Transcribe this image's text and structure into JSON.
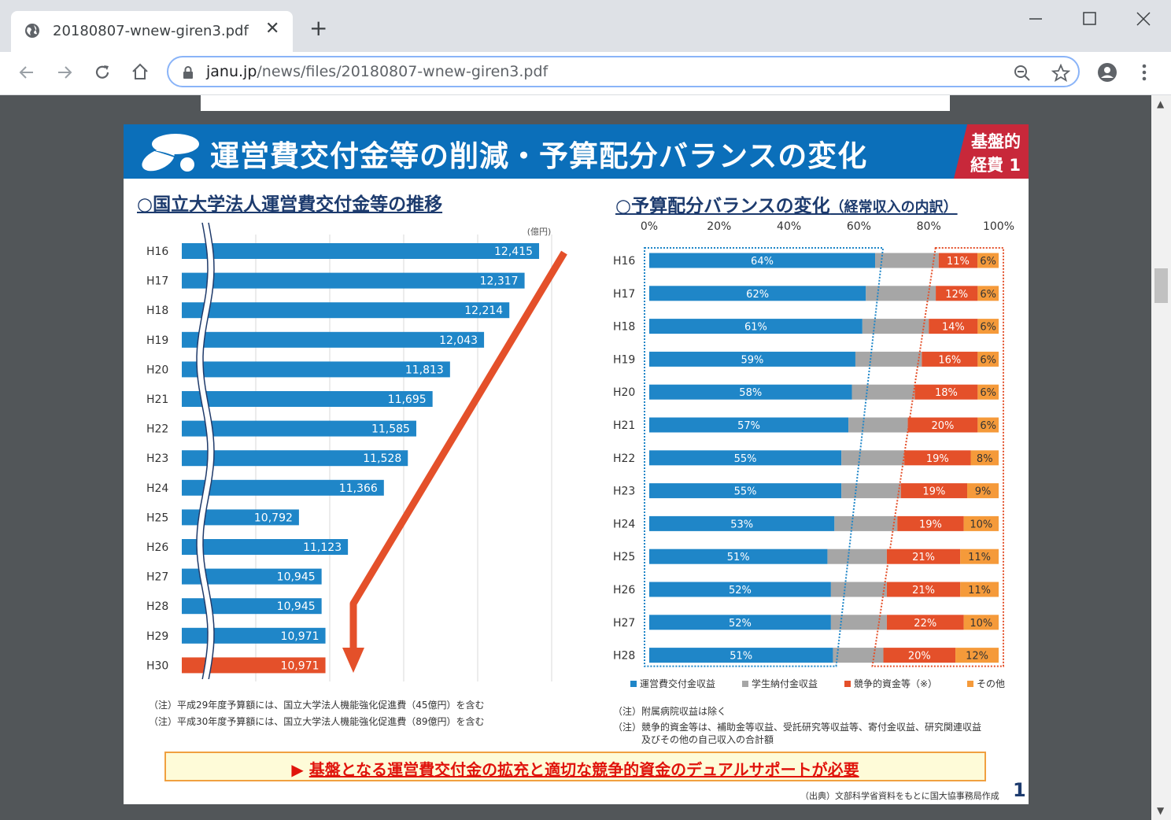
{
  "browser": {
    "tab_title": "20180807-wnew-giren3.pdf",
    "tab_close": "✕",
    "new_tab": "+",
    "url_host": "janu.jp",
    "url_path": "/news/files/20180807-wnew-giren3.pdf"
  },
  "page": {
    "title": "運営費交付金等の削減・予算配分バランスの変化",
    "badge_line1": "基盤的",
    "badge_line2": "経費 1",
    "left_section_title": "○国立大学法人運営費交付金等の推移",
    "right_section_title": "○予算配分バランスの変化",
    "right_section_subtitle": "（経常収入の内訳）",
    "left_notes": [
      "（注）平成29年度予算額には、国立大学法人機能強化促進費（45億円）を含む",
      "（注）平成30年度予算額には、国立大学法人機能強化促進費（89億円）を含む"
    ],
    "right_notes": [
      "（注）附属病院収益は除く",
      "（注）競争的資金等は、補助金等収益、受託研究等収益等、寄付金収益、研究関連収益",
      "　　　及びその他の自己収入の合計額"
    ],
    "banner_arrow": "▶",
    "banner_text": "基盤となる運営費交付金の拡充と適切な競争的資金のデュアルサポートが必要",
    "source": "（出典）文部科学省資料をもとに国大協事務局作成",
    "page_number": "1"
  },
  "colors": {
    "header_blue": "#0b6fba",
    "bar_blue": "#1f86c8",
    "bar_red": "#e4502a",
    "bar_gray": "#a6a6a6",
    "bar_orange": "#f59a3a",
    "arrow_red": "#e4502a"
  },
  "chart_data": [
    {
      "type": "bar",
      "orientation": "horizontal",
      "unit_label": "(億円)",
      "categories": [
        "H16",
        "H17",
        "H18",
        "H19",
        "H20",
        "H21",
        "H22",
        "H23",
        "H24",
        "H25",
        "H26",
        "H27",
        "H28",
        "H29",
        "H30"
      ],
      "values": [
        12415,
        12317,
        12214,
        12043,
        11813,
        11695,
        11585,
        11528,
        11366,
        10792,
        11123,
        10945,
        10945,
        10971,
        10971
      ],
      "labels": [
        "12,415",
        "12,317",
        "12,214",
        "12,043",
        "11,813",
        "11,695",
        "11,585",
        "11,528",
        "11,366",
        "10,792",
        "11,123",
        "10,945",
        "10,945",
        "10,971",
        "10,971"
      ],
      "highlight_index": 14,
      "axis_break": true,
      "grid": true
    },
    {
      "type": "bar",
      "orientation": "horizontal",
      "stacked_percent": true,
      "x_ticks": [
        "0%",
        "20%",
        "40%",
        "60%",
        "80%",
        "100%"
      ],
      "categories": [
        "H16",
        "H17",
        "H18",
        "H19",
        "H20",
        "H21",
        "H22",
        "H23",
        "H24",
        "H25",
        "H26",
        "H27",
        "H28"
      ],
      "series": [
        {
          "name": "運営費交付金収益",
          "values": [
            64,
            62,
            61,
            59,
            58,
            57,
            55,
            55,
            53,
            51,
            52,
            52,
            51
          ]
        },
        {
          "name": "学生納付金収益",
          "values": [
            18,
            20,
            19,
            19,
            18,
            17,
            18,
            17,
            18,
            17,
            16,
            16,
            14
          ]
        },
        {
          "name": "競争的資金等（※）",
          "values": [
            11,
            12,
            14,
            16,
            18,
            20,
            19,
            19,
            19,
            21,
            21,
            22,
            20
          ]
        },
        {
          "name": "その他",
          "values": [
            6,
            6,
            6,
            6,
            6,
            6,
            8,
            9,
            10,
            11,
            11,
            10,
            12
          ]
        }
      ],
      "labeled_series": [
        0,
        2,
        3
      ],
      "legend_position": "bottom"
    }
  ]
}
